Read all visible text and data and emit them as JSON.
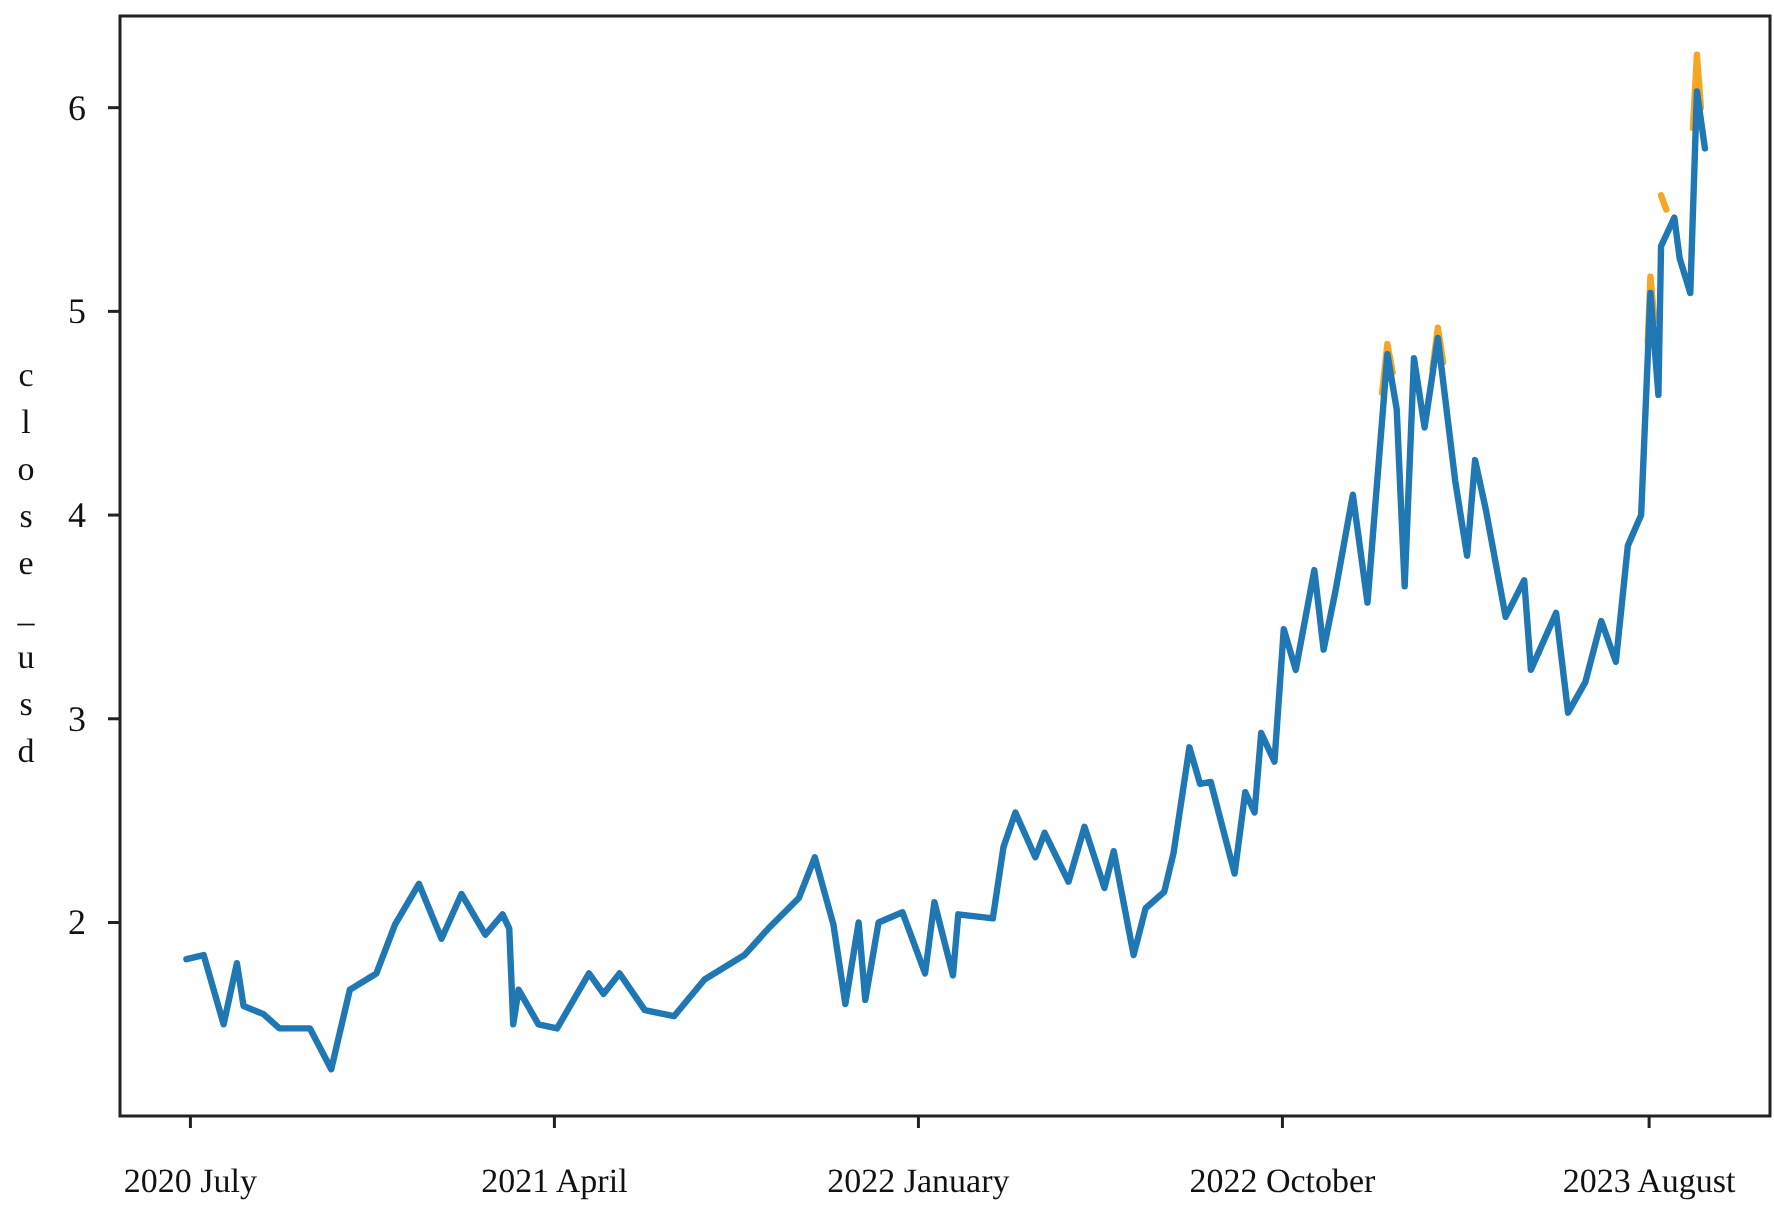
{
  "chart_data": {
    "type": "line",
    "ylabel": "close_usd",
    "xlim": [
      "2020-06-06",
      "2023-10-31"
    ],
    "ylim": [
      1.05,
      6.45
    ],
    "xticks": [
      {
        "value": "2020-07-29",
        "label": "2020 July"
      },
      {
        "value": "2021-04-29",
        "label": "2021 April"
      },
      {
        "value": "2022-01-28",
        "label": "2022 January"
      },
      {
        "value": "2022-10-29",
        "label": "2022 October"
      },
      {
        "value": "2023-08-01",
        "label": "2023 August"
      }
    ],
    "yticks": [
      2,
      3,
      4,
      5,
      6
    ],
    "grid": false,
    "marker": "none",
    "line_style": "solid",
    "series": [
      {
        "color": "#f5a623",
        "x": [
          "2023-01-12",
          "2023-01-16",
          "2023-01-20",
          "2023-02-01",
          "2023-02-19",
          "2023-02-23",
          "2023-02-27",
          "2023-03-01",
          "2023-07-31",
          "2023-08-02",
          "2023-08-05",
          "2023-08-07",
          "2023-08-10",
          "2023-08-14",
          "2023-08-20",
          "2023-09-03",
          "2023-09-06",
          "2023-09-09"
        ],
        "values": [
          4.6,
          4.84,
          4.7,
          null,
          4.72,
          4.92,
          4.75,
          null,
          4.85,
          5.17,
          4.95,
          null,
          5.57,
          5.5,
          null,
          5.9,
          6.26,
          6.0
        ]
      },
      {
        "color": "#1f77b4",
        "x": [
          "2020-07-26",
          "2020-08-08",
          "2020-08-23",
          "2020-09-02",
          "2020-09-07",
          "2020-09-22",
          "2020-10-04",
          "2020-10-27",
          "2020-11-12",
          "2020-11-26",
          "2020-12-16",
          "2020-12-30",
          "2021-01-17",
          "2021-02-03",
          "2021-02-18",
          "2021-03-08",
          "2021-03-21",
          "2021-03-26",
          "2021-03-29",
          "2021-04-02",
          "2021-04-17",
          "2021-05-01",
          "2021-05-25",
          "2021-06-05",
          "2021-06-17",
          "2021-07-06",
          "2021-07-28",
          "2021-08-20",
          "2021-09-19",
          "2021-10-07",
          "2021-10-30",
          "2021-11-11",
          "2021-11-25",
          "2021-12-04",
          "2021-12-14",
          "2021-12-19",
          "2021-12-29",
          "2022-01-16",
          "2022-02-02",
          "2022-02-09",
          "2022-02-23",
          "2022-02-27",
          "2022-03-25",
          "2022-04-02",
          "2022-04-11",
          "2022-04-26",
          "2022-05-03",
          "2022-05-21",
          "2022-06-02",
          "2022-06-17",
          "2022-06-24",
          "2022-07-09",
          "2022-07-18",
          "2022-08-01",
          "2022-08-08",
          "2022-08-20",
          "2022-08-28",
          "2022-09-05",
          "2022-09-23",
          "2022-10-01",
          "2022-10-08",
          "2022-10-13",
          "2022-10-23",
          "2022-10-30",
          "2022-11-08",
          "2022-11-22",
          "2022-11-29",
          "2022-12-08",
          "2022-12-21",
          "2023-01-01",
          "2023-01-16",
          "2023-01-23",
          "2023-01-29",
          "2023-02-05",
          "2023-02-13",
          "2023-02-23",
          "2023-03-08",
          "2023-03-17",
          "2023-03-23",
          "2023-03-31",
          "2023-04-15",
          "2023-04-29",
          "2023-05-04",
          "2023-05-23",
          "2023-06-01",
          "2023-06-14",
          "2023-06-26",
          "2023-07-07",
          "2023-07-16",
          "2023-07-26",
          "2023-08-02",
          "2023-08-08",
          "2023-08-10",
          "2023-08-20",
          "2023-08-24",
          "2023-09-01",
          "2023-09-06",
          "2023-09-12"
        ],
        "values": [
          1.82,
          1.84,
          1.5,
          1.8,
          1.59,
          1.55,
          1.48,
          1.48,
          1.28,
          1.67,
          1.75,
          1.99,
          2.19,
          1.92,
          2.14,
          1.94,
          2.04,
          1.97,
          1.5,
          1.67,
          1.5,
          1.48,
          1.75,
          1.65,
          1.75,
          1.57,
          1.54,
          1.72,
          1.84,
          1.97,
          2.12,
          2.32,
          1.99,
          1.6,
          2.0,
          1.62,
          2.0,
          2.05,
          1.75,
          2.1,
          1.74,
          2.04,
          2.02,
          2.37,
          2.54,
          2.32,
          2.44,
          2.2,
          2.47,
          2.17,
          2.35,
          1.84,
          2.07,
          2.15,
          2.34,
          2.86,
          2.68,
          2.69,
          2.24,
          2.64,
          2.54,
          2.93,
          2.79,
          3.44,
          3.24,
          3.73,
          3.34,
          3.63,
          4.1,
          3.57,
          4.79,
          4.52,
          3.65,
          4.77,
          4.43,
          4.87,
          4.17,
          3.8,
          4.27,
          4.03,
          3.5,
          3.68,
          3.24,
          3.52,
          3.03,
          3.18,
          3.48,
          3.28,
          3.85,
          4.0,
          5.09,
          4.59,
          5.32,
          5.46,
          5.26,
          5.09,
          6.08,
          5.8
        ]
      }
    ]
  }
}
